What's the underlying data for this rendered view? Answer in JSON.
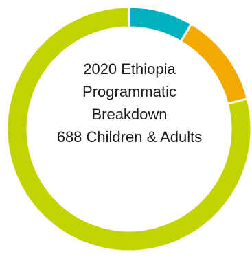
{
  "chart_data": {
    "type": "pie",
    "style": "donut",
    "title_lines": [
      "2020 Ethiopia",
      "Programmatic",
      "Breakdown",
      "688 Children & Adults"
    ],
    "slices": [
      {
        "value": 8.5,
        "color": "#00b2bf"
      },
      {
        "value": 12.5,
        "color": "#f2a900"
      },
      {
        "value": 79.0,
        "color": "#c2d400"
      }
    ],
    "start_angle_deg": 0,
    "direction": "clockwise",
    "separator_color": "#ffffff"
  }
}
